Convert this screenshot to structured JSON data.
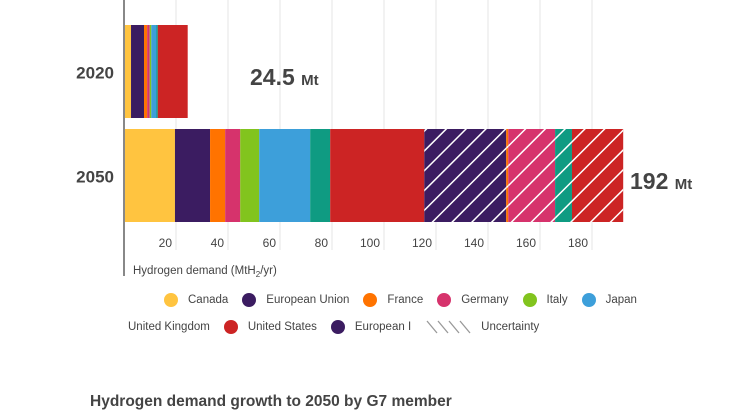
{
  "chart_data": {
    "type": "bar",
    "orientation": "horizontal",
    "stacked": true,
    "title": "Hydrogen demand growth to 2050 by G7 member",
    "xlabel": "Hydrogen demand (MtH₂/yr)",
    "ylabel": "",
    "xlim": [
      0,
      195
    ],
    "xticks": [
      20,
      40,
      60,
      80,
      100,
      120,
      140,
      160,
      180
    ],
    "grid": true,
    "categories": [
      "2020",
      "2050"
    ],
    "totals_labels": [
      {
        "value": "24.5",
        "unit": "Mt"
      },
      {
        "value": "192",
        "unit": "Mt"
      }
    ],
    "series": [
      {
        "name": "Canada",
        "color": "#FFC440",
        "hatched": false,
        "values": [
          2.7,
          19.6
        ]
      },
      {
        "name": "European Union",
        "color": "#3B1C61",
        "hatched": false,
        "values": [
          5.0,
          13.5
        ]
      },
      {
        "name": "France",
        "color": "#FF7300",
        "hatched": false,
        "values": [
          1.2,
          5.8
        ]
      },
      {
        "name": "Germany",
        "color": "#D6336C",
        "hatched": false,
        "values": [
          1.0,
          5.8
        ]
      },
      {
        "name": "Italy",
        "color": "#82C41E",
        "hatched": false,
        "values": [
          0.6,
          7.3
        ]
      },
      {
        "name": "Japan",
        "color": "#3D9FDA",
        "hatched": false,
        "values": [
          2.0,
          19.6
        ]
      },
      {
        "name": "United Kingdom",
        "color": "#0F9B82",
        "hatched": false,
        "values": [
          0.5,
          7.7
        ]
      },
      {
        "name": "United States",
        "color": "#CC2424",
        "hatched": false,
        "values": [
          11.5,
          36.2
        ]
      },
      {
        "name": "European Union (uncertainty)",
        "color": "#3B1C61",
        "hatched": true,
        "values": [
          0,
          31.5
        ]
      },
      {
        "name": "France (uncertainty)",
        "color": "#FF7300",
        "hatched": true,
        "values": [
          0,
          0.8
        ]
      },
      {
        "name": "Germany (uncertainty)",
        "color": "#D6336C",
        "hatched": true,
        "values": [
          0,
          18.0
        ]
      },
      {
        "name": "United Kingdom (uncertainty)",
        "color": "#0F9B82",
        "hatched": true,
        "values": [
          0,
          6.5
        ]
      },
      {
        "name": "United States (uncertainty)",
        "color": "#CC2424",
        "hatched": true,
        "values": [
          0,
          19.7
        ]
      }
    ],
    "legend": {
      "placement": "bottom",
      "rows": [
        [
          {
            "label": "Canada",
            "color": "#FFC440"
          },
          {
            "label": "European Union",
            "color": "#3B1C61"
          },
          {
            "label": "France",
            "color": "#FF7300"
          },
          {
            "label": "Germany",
            "color": "#D6336C"
          },
          {
            "label": "Italy",
            "color": "#82C41E"
          },
          {
            "label": "Japan",
            "color": "#3D9FDA"
          }
        ],
        [
          {
            "label": "United Kingdom",
            "color": "#0F9B82"
          },
          {
            "label": "United States",
            "color": "#CC2424"
          },
          {
            "label": "European I",
            "color": "#3B1C61"
          },
          {
            "label": "Uncertainty",
            "color": "",
            "hatch": true
          }
        ]
      ]
    }
  }
}
